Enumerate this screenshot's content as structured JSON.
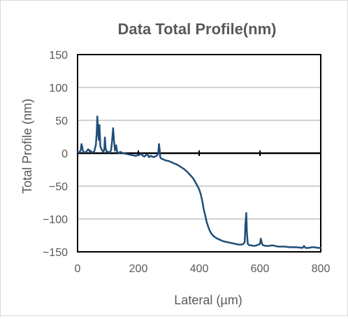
{
  "chart_data": {
    "type": "line",
    "title": "Data Total Profile(nm)",
    "xlabel": "Lateral (µm)",
    "ylabel": "Total Profile (nm)",
    "xlim": [
      0,
      800
    ],
    "ylim": [
      -150,
      150
    ],
    "x_ticks": [
      0,
      200,
      400,
      600,
      800
    ],
    "y_ticks": [
      150,
      100,
      50,
      0,
      -50,
      -100,
      -150
    ],
    "grid": true,
    "legend": "none",
    "colors": {
      "line": "#1f4e79",
      "text": "#595959",
      "gridline": "#a6a6a6",
      "axis": "#000000"
    },
    "series": [
      {
        "x": [
          0,
          5,
          10,
          13,
          15,
          18,
          22,
          28,
          35,
          40,
          42,
          45,
          50,
          55,
          60,
          63,
          65,
          67,
          70,
          72,
          75,
          80,
          85,
          88,
          90,
          92,
          95,
          100,
          105,
          110,
          113,
          117,
          120,
          123,
          127,
          130,
          133,
          137,
          140,
          145,
          150,
          160,
          170,
          180,
          190,
          200,
          210,
          215,
          220,
          225,
          230,
          235,
          240,
          245,
          250,
          255,
          260,
          265,
          268,
          270,
          272,
          275,
          280,
          290,
          300,
          310,
          320,
          330,
          340,
          350,
          360,
          370,
          380,
          390,
          400,
          405,
          410,
          415,
          420,
          425,
          430,
          435,
          440,
          445,
          450,
          460,
          470,
          480,
          490,
          500,
          510,
          520,
          530,
          540,
          545,
          550,
          552,
          555,
          557,
          560,
          565,
          570,
          580,
          590,
          595,
          600,
          603,
          607,
          610,
          620,
          630,
          640,
          650,
          660,
          670,
          680,
          700,
          720,
          740,
          745,
          750,
          760,
          770,
          780,
          790,
          800
        ],
        "values": [
          2,
          1,
          4,
          14,
          10,
          3,
          1,
          2,
          6,
          3,
          4,
          2,
          1,
          3,
          12,
          30,
          56,
          38,
          20,
          43,
          10,
          5,
          2,
          6,
          24,
          8,
          3,
          2,
          1,
          4,
          16,
          38,
          18,
          4,
          12,
          2,
          1,
          0,
          2,
          1,
          0,
          -1,
          -2,
          -3,
          -4,
          -3,
          -1,
          -4,
          -5,
          -3,
          -2,
          -6,
          -4,
          -5,
          -6,
          -5,
          -4,
          -1,
          14,
          6,
          -6,
          -8,
          -9,
          -11,
          -12,
          -14,
          -16,
          -18,
          -21,
          -24,
          -28,
          -33,
          -38,
          -46,
          -55,
          -62,
          -72,
          -85,
          -95,
          -105,
          -112,
          -118,
          -122,
          -125,
          -127,
          -130,
          -132,
          -134,
          -135,
          -136,
          -137,
          -138,
          -139,
          -139,
          -138,
          -135,
          -110,
          -91,
          -120,
          -138,
          -140,
          -140,
          -141,
          -140,
          -139,
          -138,
          -130,
          -138,
          -140,
          -141,
          -141,
          -140,
          -141,
          -142,
          -142,
          -142,
          -143,
          -143,
          -144,
          -141,
          -144,
          -144,
          -143,
          -143,
          -144,
          -144
        ]
      }
    ]
  }
}
